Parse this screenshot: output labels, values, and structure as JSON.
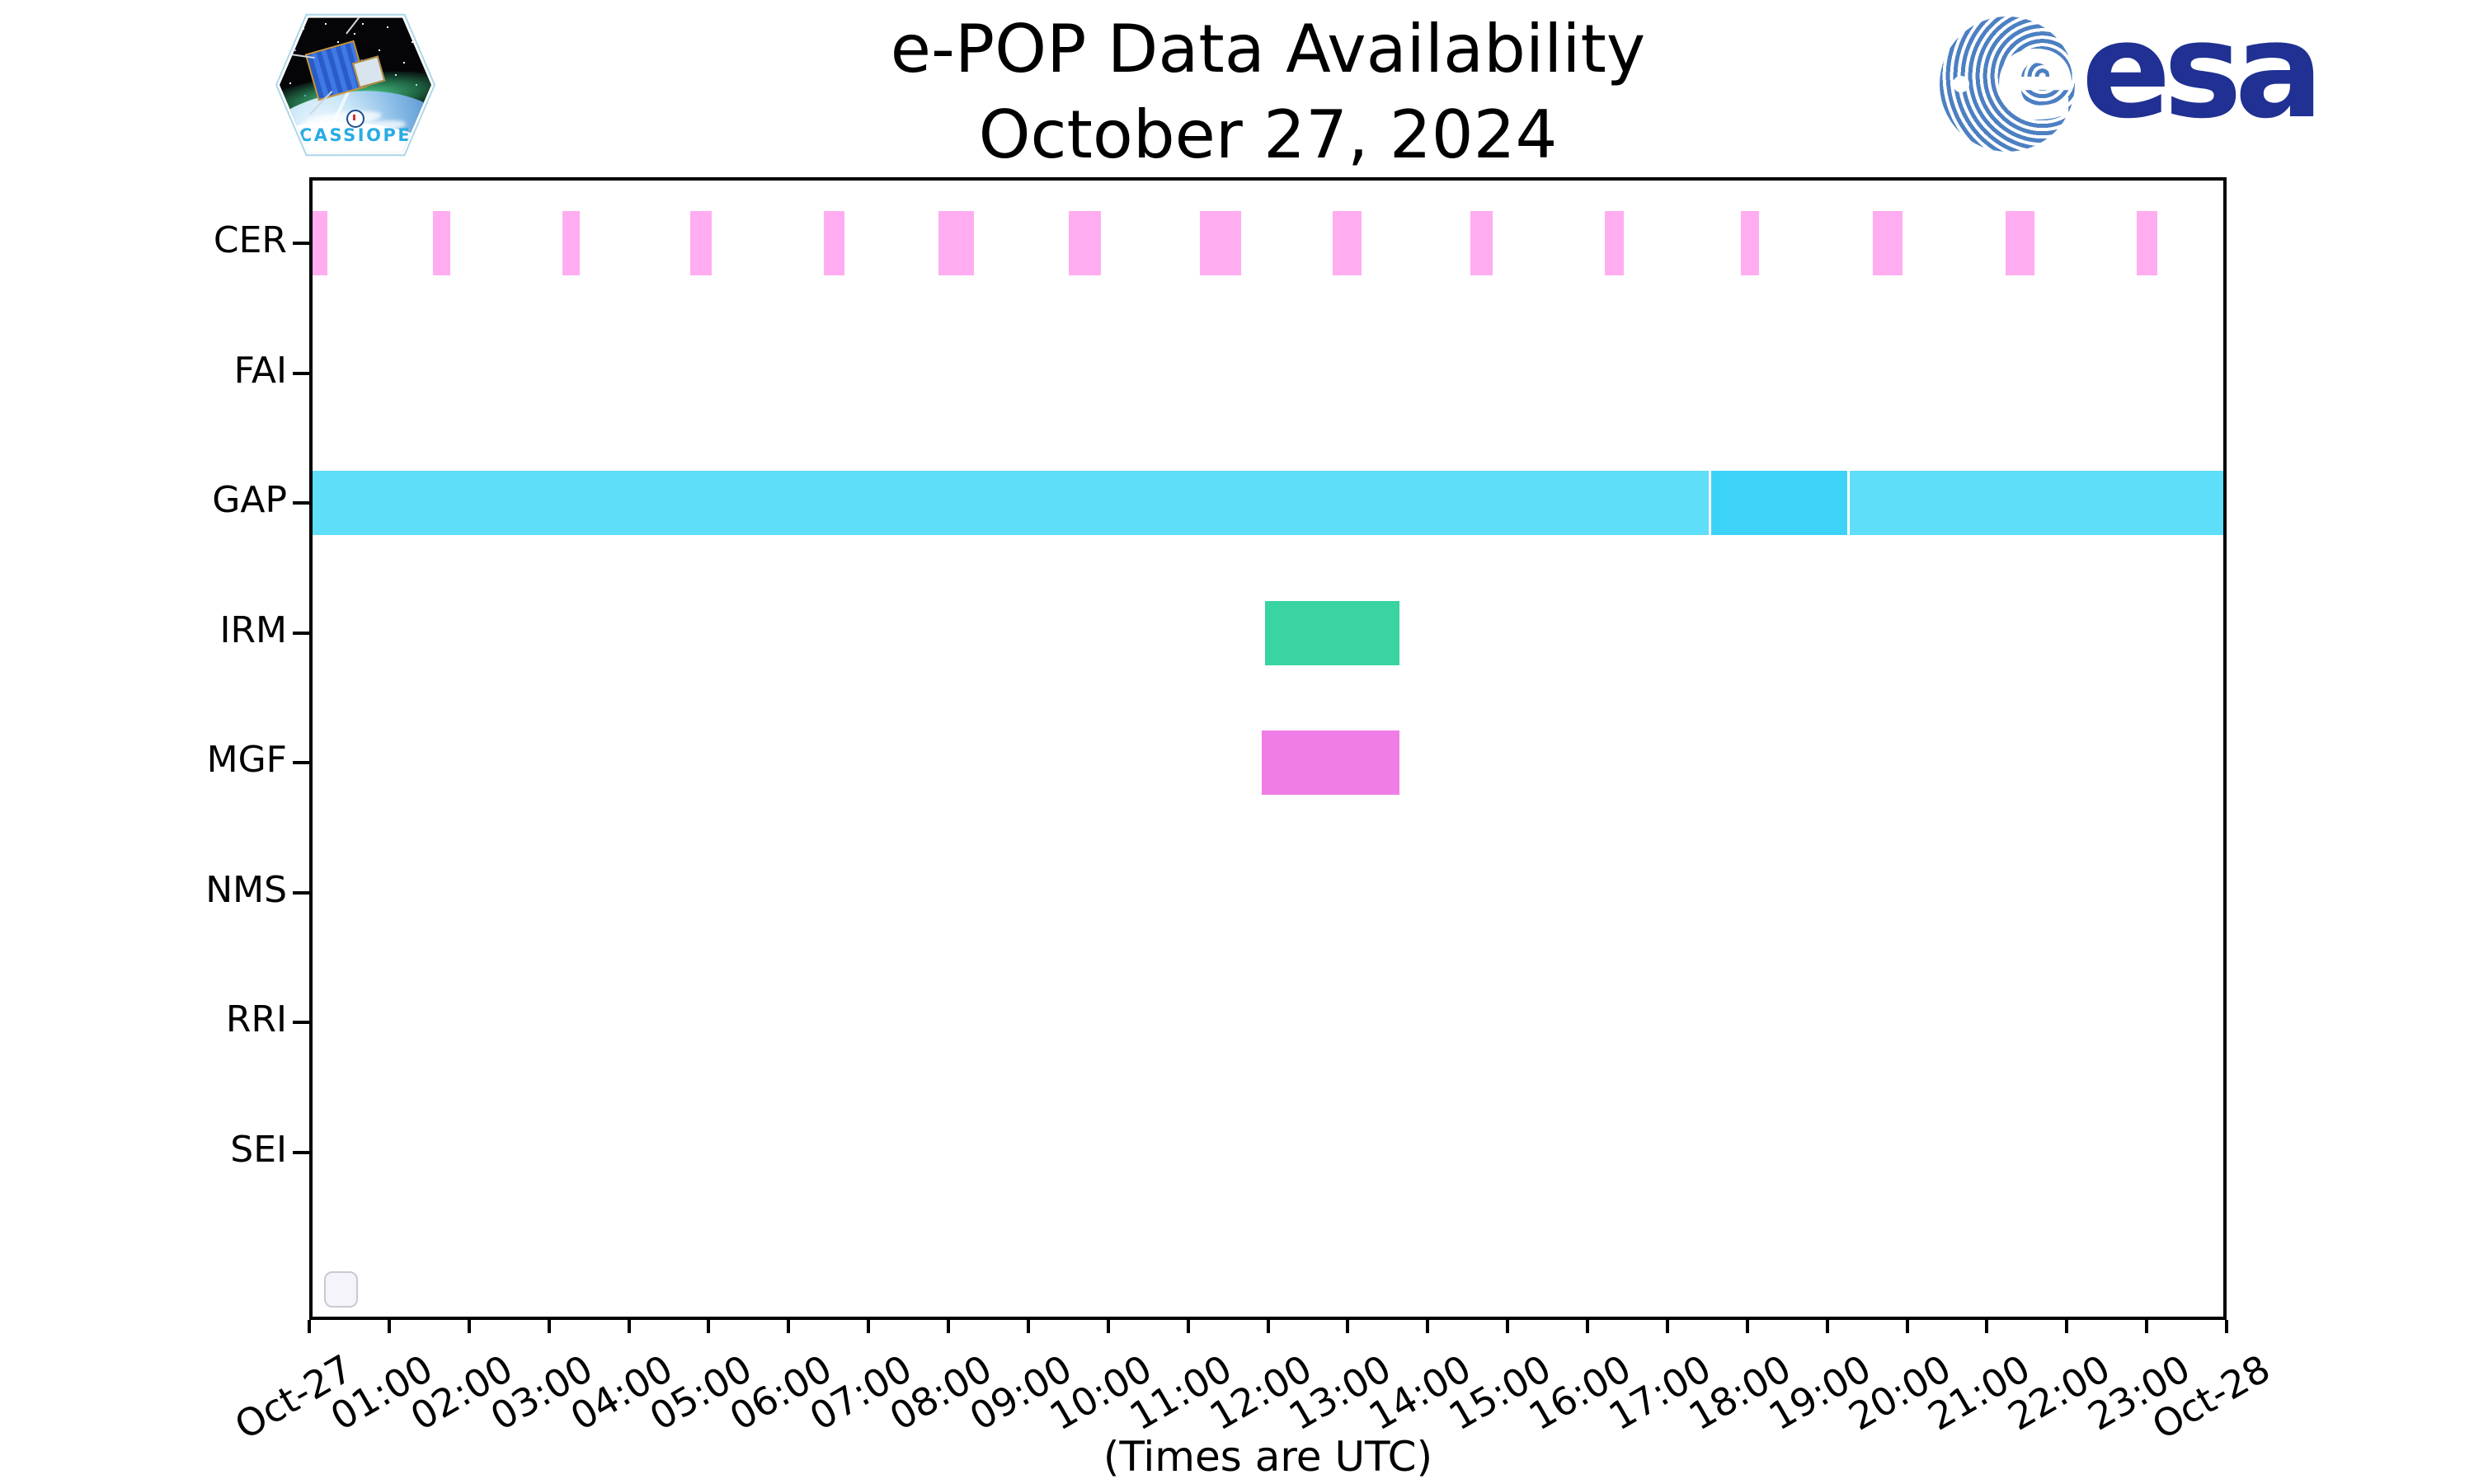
{
  "header": {
    "title_line1": "e-POP Data Availability",
    "title_line2": "October 27, 2024"
  },
  "branding": {
    "cassiope_label": "CASSIOPE",
    "esa_e": "e",
    "esa_word": "esa"
  },
  "footer": {
    "xlabel": "(Times are UTC)"
  },
  "chart_data": {
    "type": "bar",
    "subtype": "gantt-availability-timeline",
    "title": "e-POP Data Availability — October 27, 2024",
    "xlabel": "(Times are UTC)",
    "x_axis": {
      "unit": "hours UTC on 2024-10-27",
      "range_hours": [
        0,
        24
      ],
      "tick_interval_hours": 1,
      "tick_labels": [
        "Oct-27",
        "01:00",
        "02:00",
        "03:00",
        "04:00",
        "05:00",
        "06:00",
        "07:00",
        "08:00",
        "09:00",
        "10:00",
        "11:00",
        "12:00",
        "13:00",
        "14:00",
        "15:00",
        "16:00",
        "17:00",
        "18:00",
        "19:00",
        "20:00",
        "21:00",
        "22:00",
        "23:00",
        "Oct-28"
      ],
      "tick_label_rotation_deg": 30
    },
    "colors": {
      "cer": "#FFADF0",
      "gap_light": "#5FDEFA",
      "gap_dark": "#3DD2F8",
      "irm": "#3AD3A2",
      "mgf": "#F07DE6"
    },
    "rows": [
      {
        "label": "CER",
        "color_key": "cer",
        "intervals": [
          [
            0.02,
            0.23
          ],
          [
            1.55,
            1.77
          ],
          [
            3.17,
            3.39
          ],
          [
            4.77,
            5.04
          ],
          [
            6.44,
            6.7
          ],
          [
            7.88,
            8.32
          ],
          [
            9.51,
            9.91
          ],
          [
            11.15,
            11.66
          ],
          [
            12.81,
            13.17
          ],
          [
            14.53,
            14.81
          ],
          [
            16.22,
            16.45
          ],
          [
            17.92,
            18.15
          ],
          [
            19.57,
            19.94
          ],
          [
            21.23,
            21.6
          ],
          [
            22.87,
            23.13
          ]
        ]
      },
      {
        "label": "FAI",
        "color_key": "cer",
        "intervals": []
      },
      {
        "label": "GAP",
        "color_key": "gap_light",
        "intervals": [
          [
            0.0,
            17.52,
            "gap_light"
          ],
          [
            17.55,
            19.25,
            "gap_dark"
          ],
          [
            19.28,
            24.0,
            "gap_light"
          ]
        ]
      },
      {
        "label": "IRM",
        "color_key": "irm",
        "intervals": [
          [
            11.96,
            13.65
          ]
        ]
      },
      {
        "label": "MGF",
        "color_key": "mgf",
        "intervals": [
          [
            11.92,
            13.65
          ]
        ]
      },
      {
        "label": "NMS",
        "color_key": "cer",
        "intervals": []
      },
      {
        "label": "RRI",
        "color_key": "cer",
        "intervals": []
      },
      {
        "label": "SEI",
        "color_key": "cer",
        "intervals": []
      }
    ],
    "legend": {
      "visible_entries": 0,
      "empty_box_shown": true
    },
    "grid": false
  }
}
